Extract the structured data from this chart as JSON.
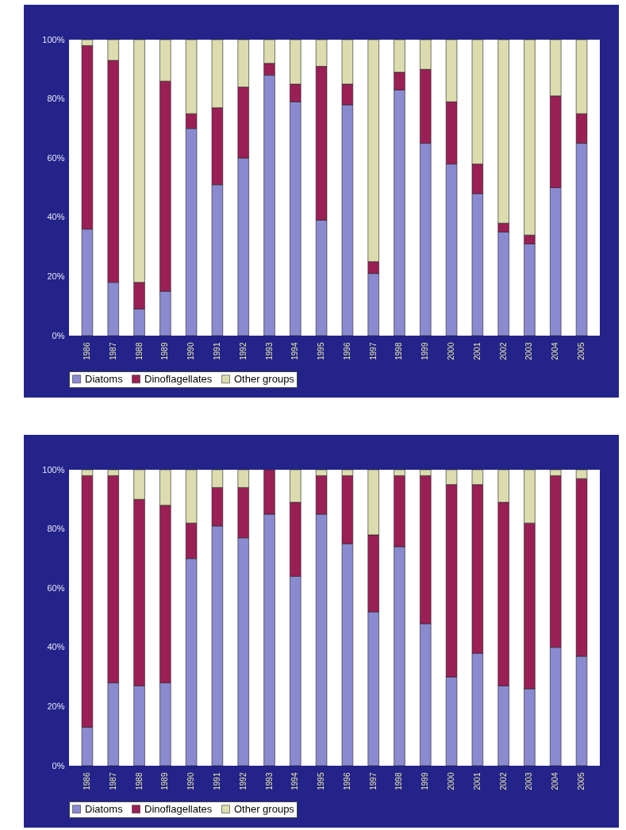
{
  "chart_data": [
    {
      "type": "bar",
      "stacked": true,
      "categories": [
        "1986",
        "1987",
        "1988",
        "1989",
        "1990",
        "1991",
        "1992",
        "1993",
        "1994",
        "1995",
        "1996",
        "1997",
        "1998",
        "1999",
        "2000",
        "2001",
        "2002",
        "2003",
        "2004",
        "2005"
      ],
      "series": [
        {
          "name": "Diatoms",
          "color": "#8a8ad0",
          "values": [
            36,
            18,
            9,
            15,
            70,
            51,
            60,
            88,
            79,
            39,
            78,
            21,
            83,
            65,
            58,
            48,
            35,
            31,
            50,
            65
          ]
        },
        {
          "name": "Dinoflagellates",
          "color": "#9a1f55",
          "values": [
            62,
            75,
            9,
            71,
            5,
            26,
            24,
            4,
            6,
            52,
            7,
            4,
            6,
            25,
            21,
            10,
            3,
            3,
            31,
            10
          ]
        },
        {
          "name": "Other groups",
          "color": "#dcdcae",
          "values": [
            2,
            7,
            82,
            14,
            25,
            23,
            16,
            8,
            15,
            9,
            15,
            75,
            11,
            10,
            21,
            42,
            62,
            66,
            19,
            25
          ]
        }
      ],
      "ylim": [
        0,
        100
      ],
      "yticks": [
        {
          "value": 0,
          "label": "0%"
        },
        {
          "value": 20,
          "label": "20%"
        },
        {
          "value": 40,
          "label": "40%"
        },
        {
          "value": 60,
          "label": "60%"
        },
        {
          "value": 80,
          "label": "80%"
        },
        {
          "value": 100,
          "label": "100%"
        }
      ],
      "legend": "bottom"
    },
    {
      "type": "bar",
      "stacked": true,
      "categories": [
        "1986",
        "1987",
        "1988",
        "1989",
        "1990",
        "1991",
        "1992",
        "1993",
        "1994",
        "1995",
        "1996",
        "1997",
        "1998",
        "1999",
        "2000",
        "2001",
        "2002",
        "2003",
        "2004",
        "2005"
      ],
      "series": [
        {
          "name": "Diatoms",
          "color": "#8a8ad0",
          "values": [
            13,
            28,
            27,
            28,
            70,
            81,
            77,
            85,
            64,
            85,
            75,
            52,
            74,
            48,
            30,
            38,
            27,
            26,
            40,
            37
          ]
        },
        {
          "name": "Dinoflagellates",
          "color": "#9a1f55",
          "values": [
            85,
            70,
            63,
            60,
            12,
            13,
            17,
            15,
            25,
            13,
            23,
            26,
            24,
            50,
            65,
            57,
            62,
            56,
            58,
            60
          ]
        },
        {
          "name": "Other groups",
          "color": "#dcdcae",
          "values": [
            2,
            2,
            10,
            12,
            18,
            6,
            6,
            0,
            11,
            2,
            2,
            22,
            2,
            2,
            5,
            5,
            11,
            18,
            2,
            3
          ]
        }
      ],
      "ylim": [
        0,
        100
      ],
      "yticks": [
        {
          "value": 0,
          "label": "0%"
        },
        {
          "value": 20,
          "label": "20%"
        },
        {
          "value": 40,
          "label": "40%"
        },
        {
          "value": 60,
          "label": "60%"
        },
        {
          "value": 80,
          "label": "80%"
        },
        {
          "value": 100,
          "label": "100%"
        }
      ],
      "legend": "bottom"
    }
  ]
}
